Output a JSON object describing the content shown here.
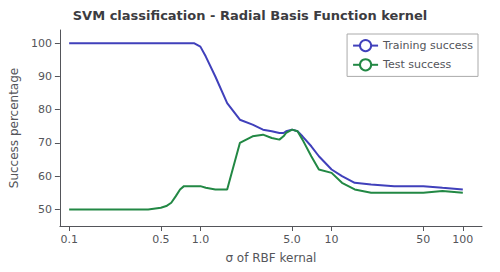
{
  "chart_data": {
    "type": "line",
    "title": "SVM classification - Radial Basis Function kernel",
    "xlabel": "σ of RBF kernal",
    "ylabel": "Success percentage",
    "log": "x",
    "xlim": [
      0.085,
      140
    ],
    "xticks": [
      0.1,
      0.5,
      {
        "value": 1,
        "label": "1.0"
      },
      {
        "value": 5,
        "label": "5.0"
      },
      10,
      50,
      100
    ],
    "ylim": [
      45,
      104
    ],
    "yticks": [
      50,
      60,
      70,
      80,
      90,
      100
    ],
    "grid": false,
    "legend": "upper right",
    "series": [
      {
        "name": "Training success",
        "color": "#4040bb",
        "x": [
          0.1,
          0.15,
          0.2,
          0.3,
          0.4,
          0.5,
          0.6,
          0.7,
          0.8,
          0.9,
          1.0,
          1.1,
          1.3,
          1.6,
          2.0,
          2.5,
          3.0,
          3.5,
          4.0,
          4.3,
          4.5,
          5.0,
          5.5,
          6.0,
          7.0,
          8.0,
          10.0,
          12.0,
          15.0,
          20.0,
          30.0,
          40.0,
          50.0,
          70.0,
          100.0
        ],
        "values": [
          100,
          100,
          100,
          100,
          100,
          100,
          100,
          100,
          100,
          100,
          99,
          96,
          90,
          82,
          77,
          75.5,
          74,
          73.5,
          73,
          73,
          73.5,
          74,
          73.5,
          72,
          69,
          66,
          62,
          60,
          58,
          57.5,
          57,
          57,
          57,
          56.5,
          56
        ]
      },
      {
        "name": "Test success",
        "color": "#228844",
        "x": [
          0.1,
          0.15,
          0.2,
          0.3,
          0.4,
          0.5,
          0.55,
          0.6,
          0.65,
          0.7,
          0.75,
          0.8,
          0.9,
          1.0,
          1.1,
          1.3,
          1.6,
          2.0,
          2.5,
          3.0,
          3.5,
          4.0,
          4.3,
          4.5,
          5.0,
          5.5,
          6.0,
          7.0,
          8.0,
          10.0,
          12.0,
          15.0,
          20.0,
          30.0,
          40.0,
          50.0,
          70.0,
          100.0
        ],
        "values": [
          50,
          50,
          50,
          50,
          50,
          50.5,
          51,
          52,
          54,
          56,
          57,
          57,
          57,
          57,
          56.5,
          56,
          56,
          70,
          72,
          72.5,
          71.5,
          71,
          72,
          73,
          74,
          73.5,
          71,
          66,
          62,
          61,
          58,
          56,
          55,
          55,
          55,
          55,
          55.5,
          55
        ]
      }
    ]
  }
}
